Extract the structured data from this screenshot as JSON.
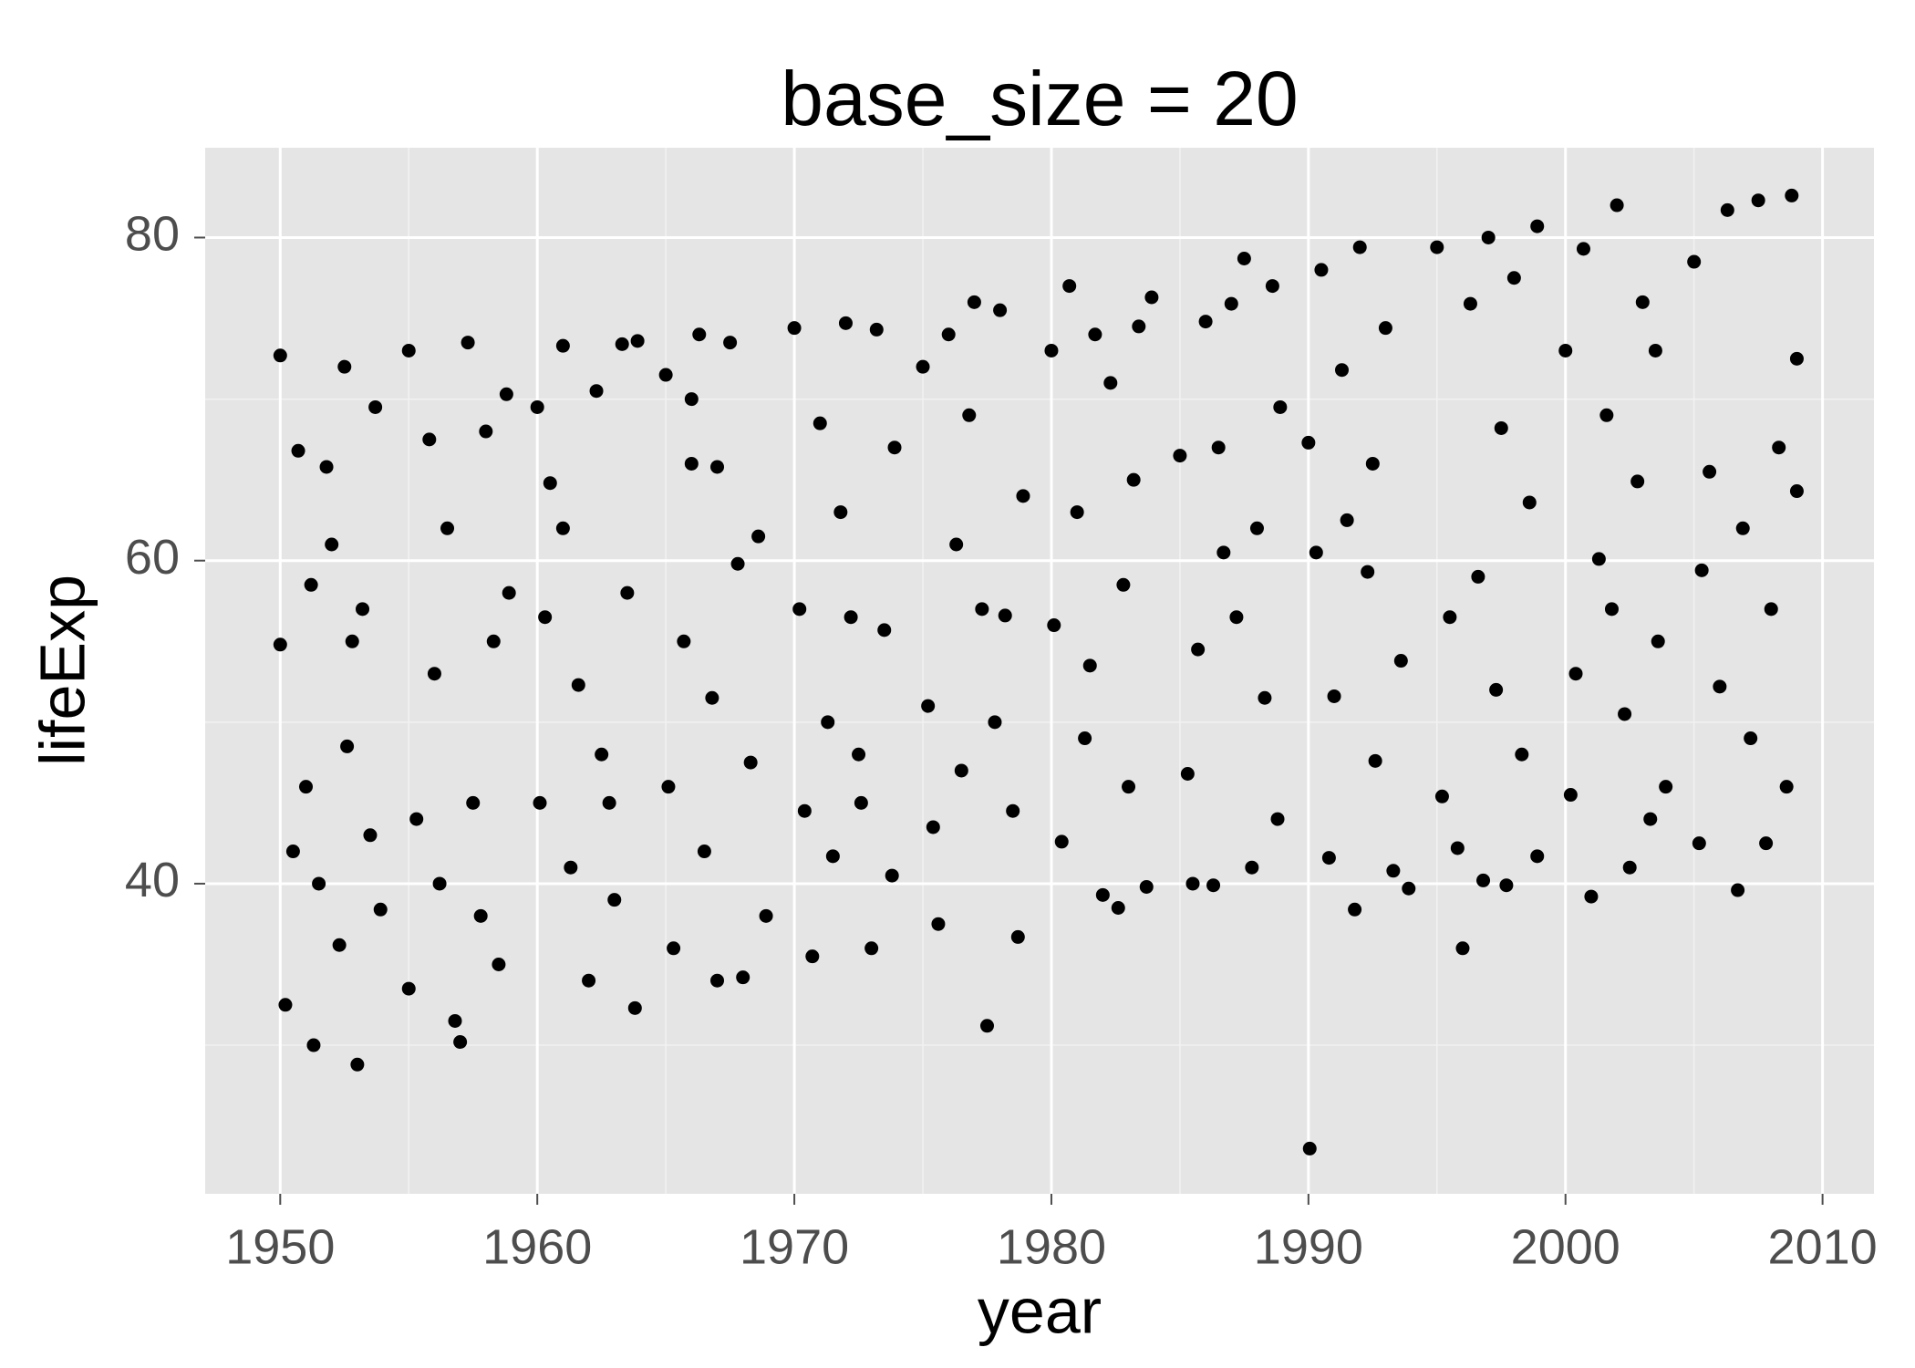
{
  "chart_data": {
    "type": "scatter",
    "title": "base_size = 20",
    "x_label": "year",
    "y_label": "lifeExp",
    "color": "#000000",
    "xlim": [
      1947.08,
      2012.0
    ],
    "ylim": [
      20.8,
      85.56
    ],
    "xticks": [
      1950,
      1960,
      1970,
      1980,
      1990,
      2000,
      2010
    ],
    "yticks": [
      40,
      60,
      80
    ],
    "grid": true,
    "x": [
      1950.0,
      1950.0,
      1950.2,
      1950.5,
      1950.7,
      1951.0,
      1951.3,
      1951.5,
      1951.8,
      1952.0,
      1952.3,
      1952.5,
      1952.8,
      1953.0,
      1953.2,
      1953.5,
      1953.7,
      1953.9,
      1952.6,
      1951.2,
      1955.0,
      1955.0,
      1955.3,
      1955.8,
      1956.0,
      1956.2,
      1956.5,
      1956.8,
      1957.0,
      1957.3,
      1957.5,
      1958.0,
      1958.3,
      1958.5,
      1958.8,
      1958.9,
      1957.8,
      1960.0,
      1960.1,
      1960.3,
      1960.5,
      1961.0,
      1961.3,
      1961.6,
      1962.0,
      1962.3,
      1962.5,
      1963.0,
      1963.3,
      1963.5,
      1963.8,
      1963.9,
      1962.8,
      1961.0,
      1965.0,
      1965.1,
      1965.3,
      1965.7,
      1966.0,
      1966.3,
      1966.5,
      1966.8,
      1967.0,
      1967.5,
      1967.8,
      1968.0,
      1968.3,
      1968.6,
      1968.9,
      1966.0,
      1967.0,
      1970.0,
      1970.2,
      1970.4,
      1970.7,
      1971.0,
      1971.3,
      1971.5,
      1972.0,
      1972.2,
      1972.5,
      1973.0,
      1973.2,
      1973.5,
      1973.8,
      1973.9,
      1971.8,
      1972.6,
      1975.0,
      1975.2,
      1975.4,
      1975.6,
      1976.0,
      1976.3,
      1976.5,
      1977.0,
      1977.3,
      1977.5,
      1978.0,
      1978.2,
      1978.5,
      1978.7,
      1978.9,
      1976.8,
      1977.8,
      1980.0,
      1980.1,
      1980.4,
      1980.7,
      1981.0,
      1981.3,
      1981.7,
      1982.0,
      1982.3,
      1982.6,
      1982.8,
      1983.0,
      1983.4,
      1983.7,
      1983.9,
      1981.5,
      1983.2,
      1985.0,
      1985.3,
      1985.5,
      1985.7,
      1986.0,
      1986.3,
      1986.7,
      1987.0,
      1987.5,
      1987.8,
      1988.0,
      1988.3,
      1988.6,
      1988.8,
      1988.9,
      1986.5,
      1987.2,
      1990.0,
      1990.05,
      1990.3,
      1990.5,
      1990.8,
      1991.0,
      1991.3,
      1991.8,
      1992.0,
      1992.3,
      1992.6,
      1993.0,
      1993.3,
      1993.6,
      1993.9,
      1992.5,
      1991.5,
      1995.0,
      1995.2,
      1995.5,
      1995.8,
      1996.0,
      1996.3,
      1996.6,
      1996.8,
      1997.0,
      1997.3,
      1997.5,
      1997.7,
      1998.0,
      1998.3,
      1998.6,
      1998.9,
      1998.9,
      2000.0,
      2000.2,
      2000.4,
      2000.7,
      2001.0,
      2001.3,
      2001.6,
      2002.0,
      2002.3,
      2002.5,
      2002.8,
      2003.0,
      2003.3,
      2003.6,
      2003.9,
      2001.8,
      2003.5,
      2005.0,
      2005.2,
      2005.3,
      2005.6,
      2006.0,
      2006.3,
      2006.7,
      2006.9,
      2007.2,
      2007.5,
      2007.8,
      2008.0,
      2008.3,
      2008.6,
      2008.8,
      2009.0,
      2009.0
    ],
    "values": [
      72.7,
      54.8,
      32.5,
      42,
      66.8,
      46,
      30,
      40,
      65.8,
      61,
      36.2,
      72,
      55,
      28.8,
      57,
      43,
      69.5,
      38.4,
      48.5,
      58.5,
      73,
      33.5,
      44,
      67.5,
      53,
      40,
      62,
      31.5,
      30.2,
      73.5,
      45,
      68,
      55,
      35,
      70.3,
      58,
      38,
      69.5,
      45,
      56.5,
      64.8,
      73.3,
      41,
      52.3,
      34,
      70.5,
      48,
      39,
      73.4,
      58,
      32.3,
      73.6,
      45,
      62,
      71.5,
      46,
      36,
      55,
      66,
      74,
      42,
      51.5,
      34,
      73.5,
      59.8,
      34.2,
      47.5,
      61.5,
      38,
      70,
      65.8,
      74.4,
      57,
      44.5,
      35.5,
      68.5,
      50,
      41.7,
      74.7,
      56.5,
      48,
      36,
      74.3,
      55.7,
      40.5,
      67,
      63,
      45,
      72,
      51,
      43.5,
      37.5,
      74,
      61,
      47,
      76,
      57,
      31.2,
      75.5,
      56.6,
      44.5,
      36.7,
      64,
      69,
      50,
      73,
      56,
      42.6,
      77,
      63,
      49,
      74,
      39.3,
      71,
      38.5,
      58.5,
      46,
      74.5,
      39.8,
      76.3,
      53.5,
      65,
      66.5,
      46.8,
      40,
      54.5,
      74.8,
      39.9,
      60.5,
      75.9,
      78.7,
      41,
      62,
      51.5,
      77,
      44,
      69.5,
      67,
      56.5,
      67.3,
      23.6,
      60.5,
      78,
      41.6,
      51.6,
      71.8,
      38.4,
      79.4,
      59.3,
      47.6,
      74.4,
      40.8,
      53.8,
      39.7,
      66,
      62.5,
      79.4,
      45.4,
      56.5,
      42.2,
      36,
      75.9,
      59,
      40.2,
      80,
      52,
      68.2,
      39.9,
      77.5,
      48,
      63.6,
      80.7,
      41.7,
      73,
      45.5,
      53,
      79.3,
      39.2,
      60.1,
      69,
      82,
      50.5,
      41,
      64.9,
      76,
      44,
      55,
      46,
      57,
      73,
      78.5,
      42.5,
      59.4,
      65.5,
      52.2,
      81.7,
      39.6,
      62,
      49,
      82.3,
      42.5,
      57,
      67,
      46,
      82.6,
      72.5,
      64.3
    ]
  }
}
